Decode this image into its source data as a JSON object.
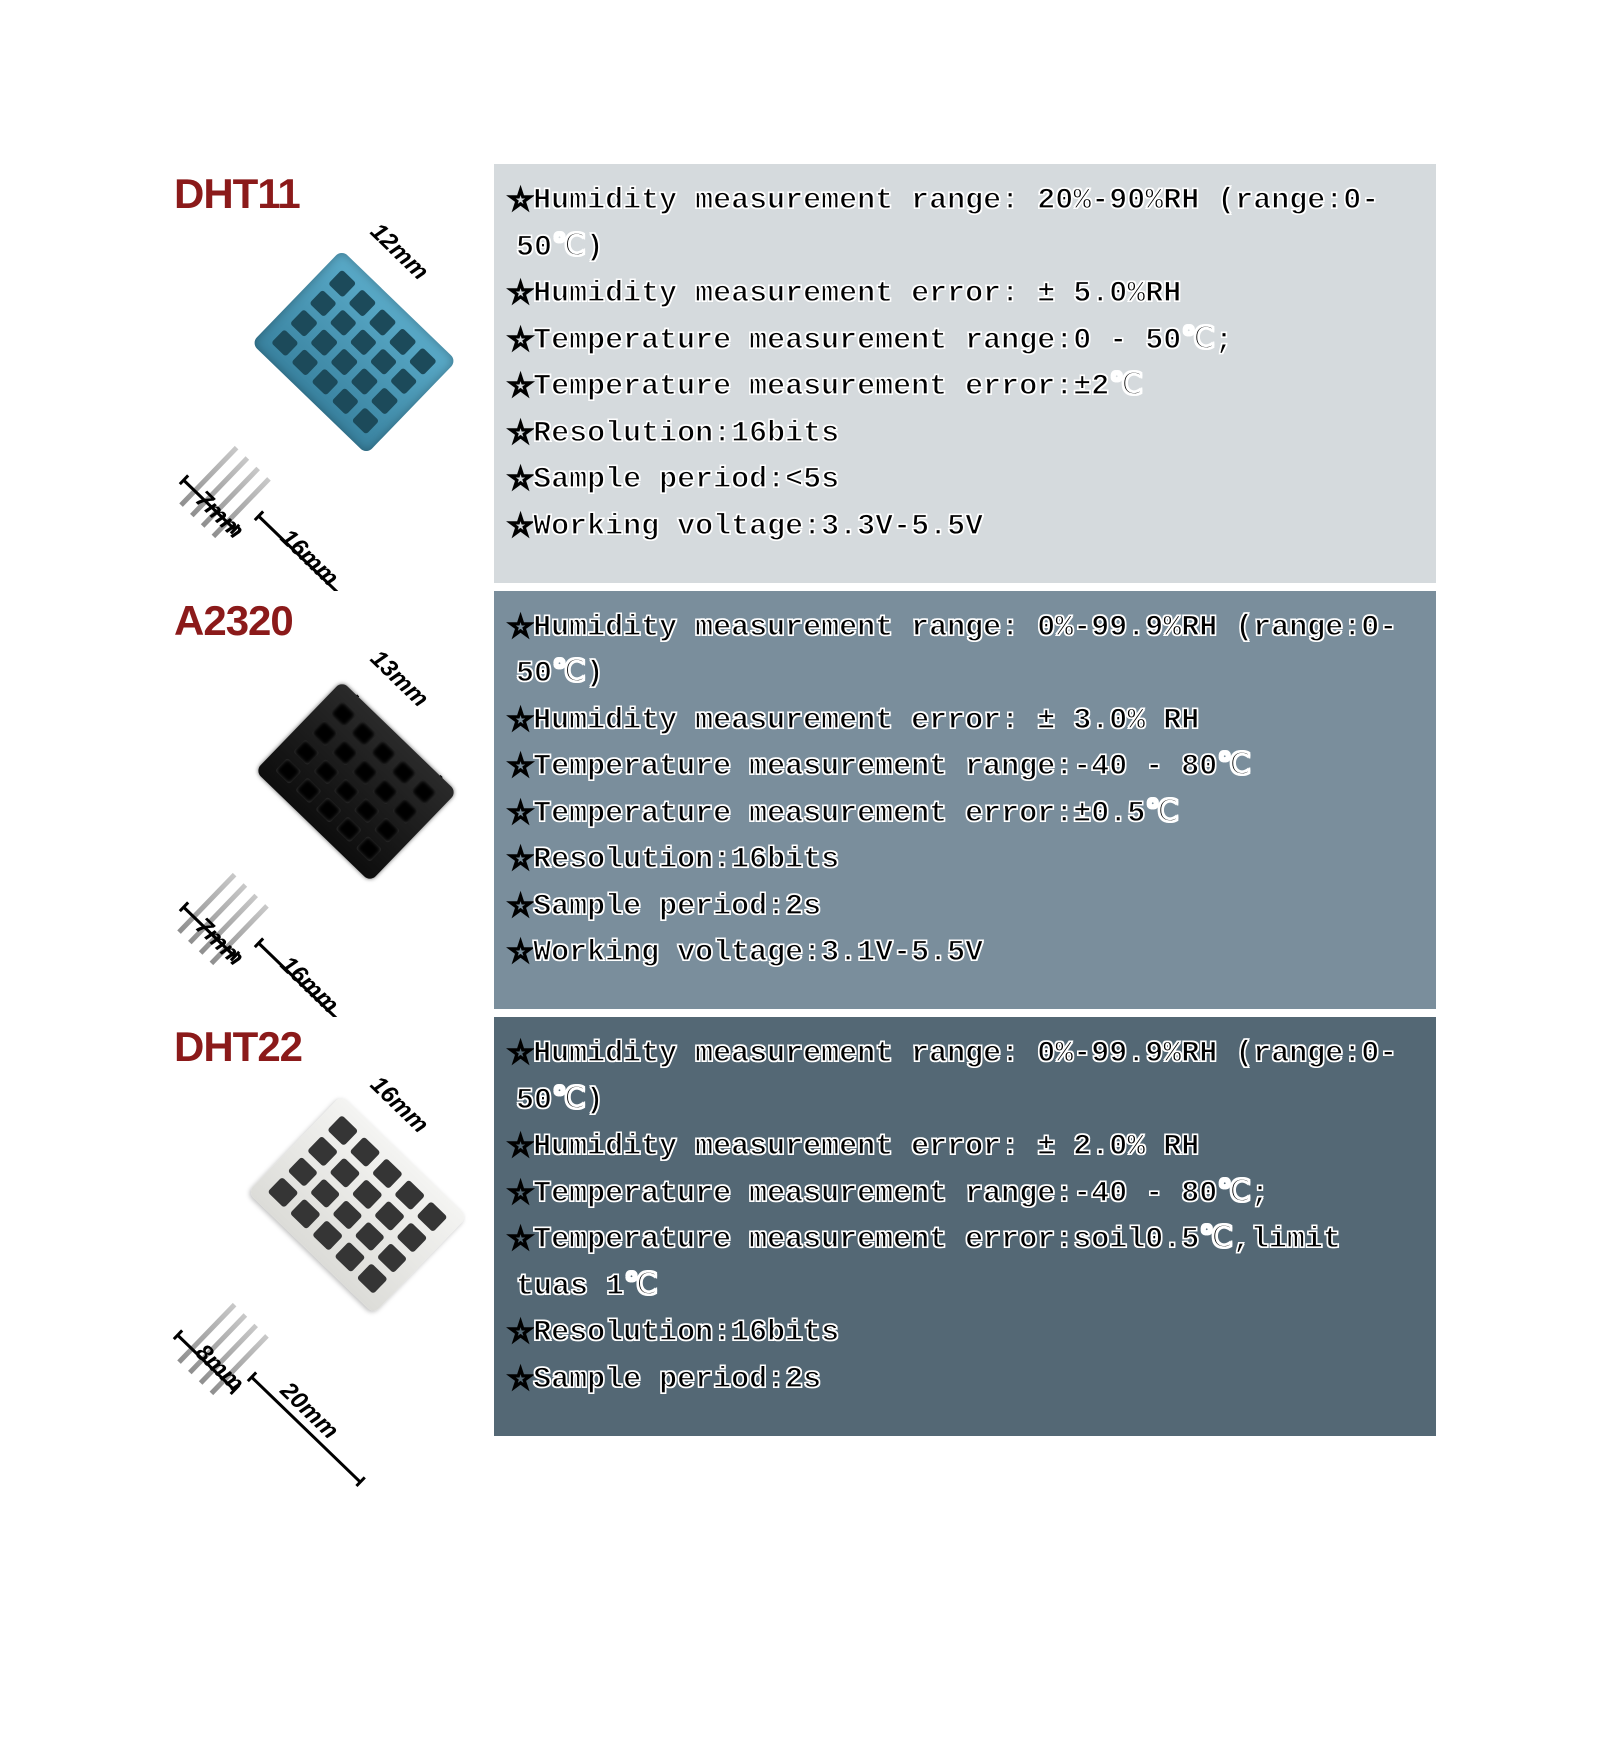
{
  "global": {
    "font_family": "Courier New, monospace",
    "title_font_family": "Arial, sans-serif",
    "title_color": "#8b1a1a",
    "spec_text_stroke": "#ffffff",
    "spec_text_fill": "#000000",
    "infographic_type": "product-comparison-infographic",
    "panel_layout": "3 stacked rows, each split left (product image + dimensions on white) / right (spec bullet list on tinted background)"
  },
  "sensors": [
    {
      "id": "dht11",
      "name": "DHT11",
      "body_color": "#4a9bbd",
      "right_bg": "#d5dadd",
      "dimensions": {
        "top": "12mm",
        "length": "16mm",
        "thickness": "7mm"
      },
      "specs": [
        "Humidity measurement range: 20%-90%RH (range:0-50℃)",
        "Humidity measurement error: ± 5.0%RH",
        "Temperature measurement range:0 - 50℃;",
        "Temperature measurement error:±2℃",
        "Resolution:16bits",
        "Sample period:<5s",
        "Working voltage:3.3V-5.5V"
      ]
    },
    {
      "id": "a2320",
      "name": "A2320",
      "body_color": "#1a1a1a",
      "right_bg": "#7a8e9c",
      "dimensions": {
        "top": "13mm",
        "length": "16mm",
        "thickness": "7mm"
      },
      "specs": [
        "Humidity measurement range: 0%-99.9%RH (range:0-50℃)",
        "Humidity measurement error: ± 3.0% RH",
        "Temperature measurement range:-40 - 80℃",
        "Temperature measurement error:±0.5℃",
        "Resolution:16bits",
        "Sample period:2s",
        "Working voltage:3.1V-5.5V"
      ]
    },
    {
      "id": "dht22",
      "name": "DHT22",
      "body_color": "#ecece9",
      "right_bg": "#546875",
      "dimensions": {
        "top": "16mm",
        "length": "20mm",
        "thickness": "8mm"
      },
      "specs": [
        "Humidity measurement range: 0%-99.9%RH (range:0-50℃)",
        "Humidity measurement error: ± 2.0% RH",
        "Temperature measurement range:-40 - 80℃;",
        "Temperature measurement error:soil0.5℃,limit tuas 1℃",
        "Resolution:16bits",
        "Sample period:2s"
      ]
    }
  ]
}
